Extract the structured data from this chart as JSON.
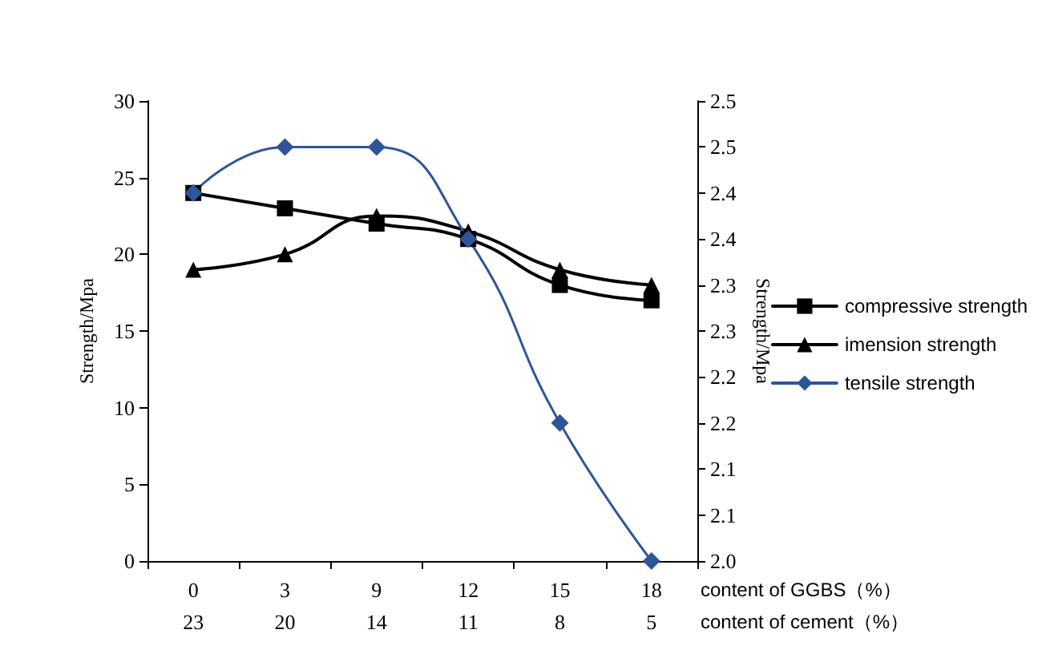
{
  "chart_data": {
    "type": "line",
    "categories": [
      "0\n23",
      "3\n20",
      "9\n14",
      "12\n11",
      "15\n8",
      "18\n5"
    ],
    "xlabel": "content of GGBS（%）",
    "annotations": [
      "content of cement（%）"
    ],
    "ylabel": "Strength/Mpa",
    "y2label": "Strength/Mpa",
    "ylim": [
      0,
      30
    ],
    "yticks": [
      0,
      5,
      10,
      15,
      20,
      25,
      30
    ],
    "y2lim": [
      2.0,
      2.5
    ],
    "y2ticks": [
      {
        "value": 2.0,
        "label": "2.0"
      },
      {
        "value": 2.05,
        "label": "2.1"
      },
      {
        "value": 2.1,
        "label": "2.1"
      },
      {
        "value": 2.15,
        "label": "2.2"
      },
      {
        "value": 2.2,
        "label": "2.2"
      },
      {
        "value": 2.25,
        "label": "2.3"
      },
      {
        "value": 2.3,
        "label": "2.3"
      },
      {
        "value": 2.35,
        "label": "2.4"
      },
      {
        "value": 2.4,
        "label": "2.4"
      },
      {
        "value": 2.45,
        "label": "2.5"
      },
      {
        "value": 2.5,
        "label": "2.5"
      }
    ],
    "series": [
      {
        "name": "compressive strength",
        "color": "#000000",
        "marker": "square",
        "values": [
          24,
          23,
          22,
          21,
          18,
          17
        ]
      },
      {
        "name": "imension strength",
        "color": "#000000",
        "marker": "triangle",
        "values": [
          19,
          20,
          22.5,
          21.5,
          19,
          18
        ]
      },
      {
        "name": "tensile strength",
        "color": "#2e5597",
        "marker": "diamond",
        "axis": "y2",
        "values": [
          2.4,
          2.45,
          2.45,
          2.35,
          2.15,
          2.0
        ]
      }
    ],
    "grid": false,
    "legend": "right",
    "line_style": "solid"
  }
}
